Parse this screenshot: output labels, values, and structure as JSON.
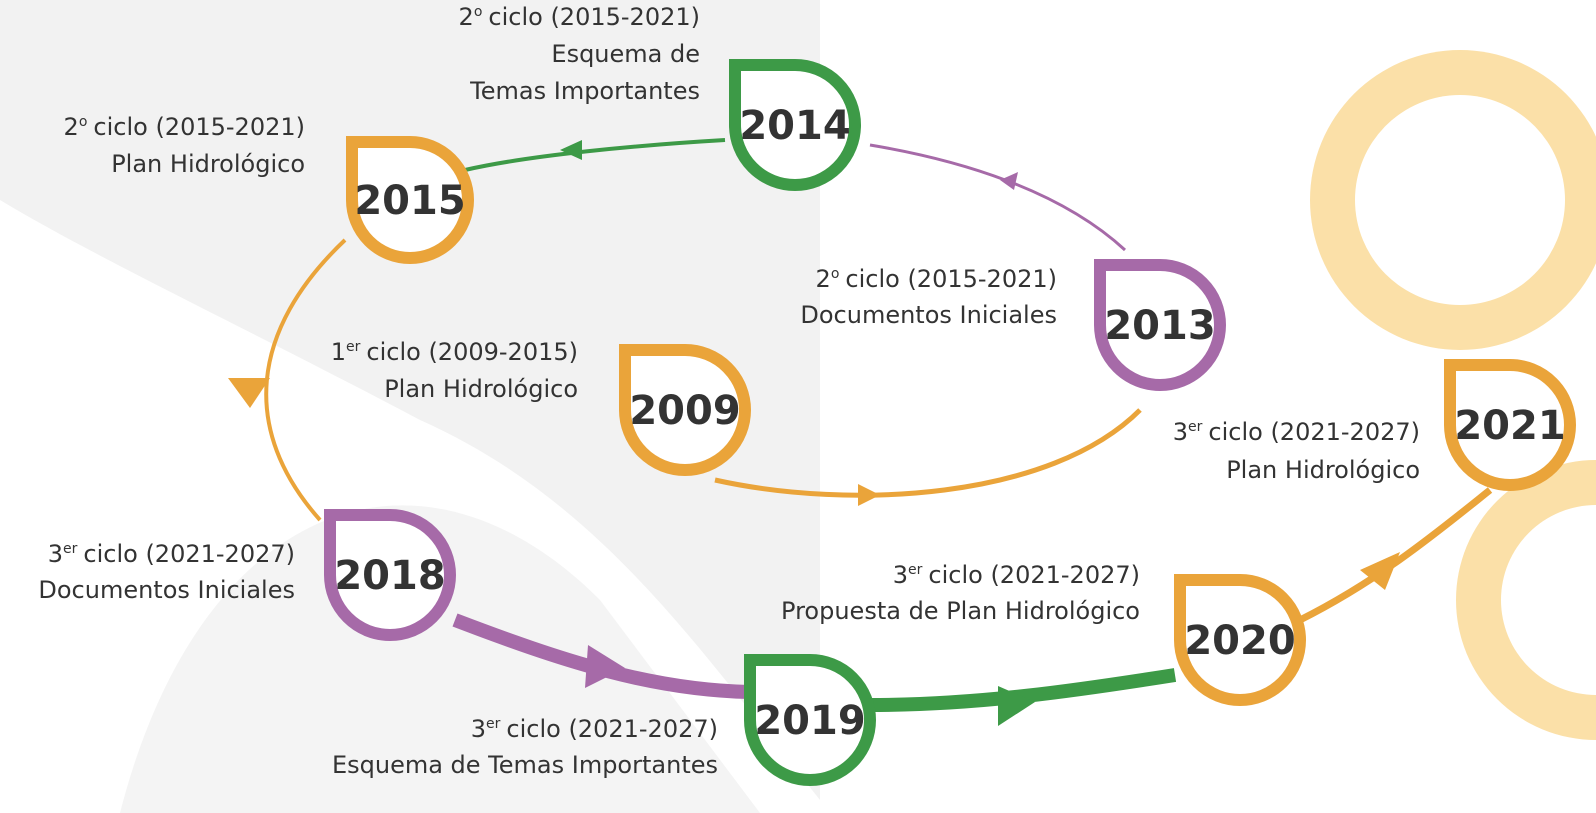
{
  "nodes": [
    {
      "year": "2014",
      "color": "#3d9a47",
      "caption": [
        {
          "num": "2",
          "sup": "o",
          "text": "ciclo (2015-2021)"
        },
        {
          "text": "Esquema de"
        },
        {
          "text": "Temas Importantes"
        }
      ]
    },
    {
      "year": "2015",
      "color": "#eaa43a",
      "caption": [
        {
          "num": "2",
          "sup": "o",
          "text": "ciclo (2015-2021)"
        },
        {
          "text": "Plan Hidrológico"
        }
      ]
    },
    {
      "year": "2013",
      "color": "#a66aa8",
      "caption": [
        {
          "num": "2",
          "sup": "o",
          "text": "ciclo (2015-2021)"
        },
        {
          "text": "Documentos Iniciales"
        }
      ]
    },
    {
      "year": "2009",
      "color": "#eaa43a",
      "caption": [
        {
          "num": "1",
          "sup": "er",
          "text": "ciclo (2009-2015)"
        },
        {
          "text": "Plan Hidrológico"
        }
      ]
    },
    {
      "year": "2021",
      "color": "#eaa43a",
      "caption": [
        {
          "num": "3",
          "sup": "er",
          "text": "ciclo (2021-2027)"
        },
        {
          "text": "Plan Hidrológico"
        }
      ]
    },
    {
      "year": "2018",
      "color": "#a66aa8",
      "caption": [
        {
          "num": "3",
          "sup": "er",
          "text": "ciclo (2021-2027)"
        },
        {
          "text": "Documentos Iniciales"
        }
      ]
    },
    {
      "year": "2020",
      "color": "#eaa43a",
      "caption": [
        {
          "num": "3",
          "sup": "er",
          "text": "ciclo (2021-2027)"
        },
        {
          "text": "Propuesta de Plan Hidrológico"
        }
      ]
    },
    {
      "year": "2019",
      "color": "#3d9a47",
      "caption": [
        {
          "num": "3",
          "sup": "er",
          "text": "ciclo (2021-2027)"
        },
        {
          "text": "Esquema de Temas Importantes"
        }
      ]
    }
  ]
}
